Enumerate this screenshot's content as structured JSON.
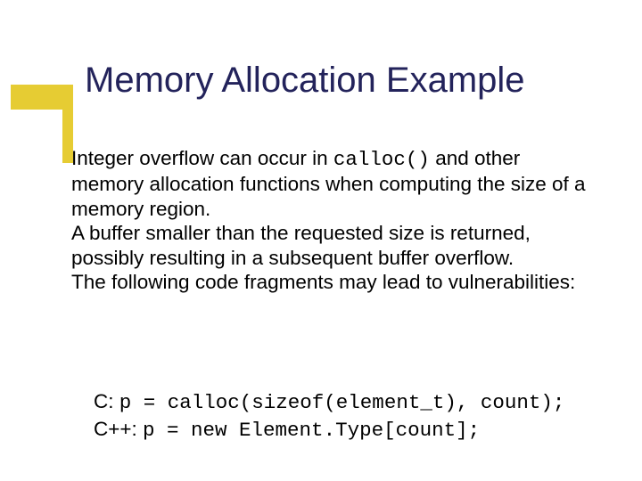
{
  "accent": {
    "color": "#e6cc33"
  },
  "title": {
    "text": "Memory Allocation Example",
    "color": "#23235b",
    "fontsize": 40
  },
  "body": {
    "color": "#000000",
    "fontsize": 22.5,
    "p1a": "Integer overflow can occur in ",
    "p1_code": "calloc()",
    "p1b": " and other memory allocation functions when computing the size of a memory region.",
    "p2": "A buffer smaller than the requested size is returned, possibly resulting in a subsequent buffer overflow.",
    "p3": "The following code fragments may lead to vulnerabilities:"
  },
  "code": {
    "color": "#000000",
    "fontsize": 22.5,
    "lines": [
      {
        "lang": "C: ",
        "code": "p = calloc(sizeof(element_t), count);"
      },
      {
        "lang": "C++: ",
        "code": "p = new Element.Type[count];"
      }
    ]
  }
}
